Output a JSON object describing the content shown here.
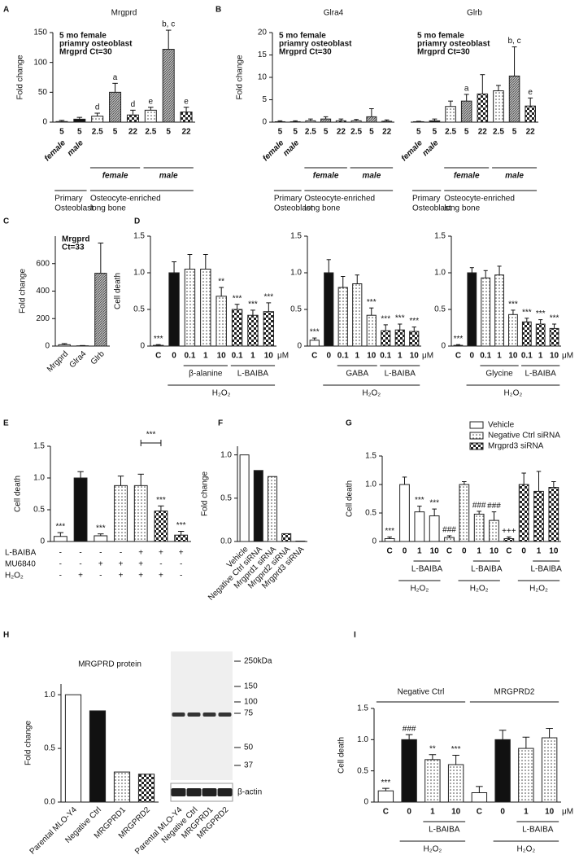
{
  "chart_data": [
    {
      "type": "bar",
      "panel": "A",
      "title": "Mrgprd",
      "note": [
        "5 mo female",
        "priamry osteoblast",
        "Mrgprd Ct=30"
      ],
      "y_label": "Fold change",
      "ylim": [
        0,
        150
      ],
      "yticks": [
        0,
        50,
        100,
        150
      ],
      "categories": [
        "5",
        "5",
        "2.5",
        "5",
        "22",
        "2.5",
        "5",
        "22"
      ],
      "values": [
        1,
        5,
        10,
        50,
        12,
        20,
        122,
        17
      ],
      "errors": [
        2,
        3,
        5,
        15,
        8,
        5,
        32,
        8
      ],
      "fills": [
        "white",
        "black",
        "dots",
        "gray",
        "checker",
        "dots",
        "gray",
        "checker"
      ],
      "annotations": [
        null,
        null,
        "d",
        "a",
        "d",
        "e",
        "b, c",
        "e"
      ],
      "sublabels": [
        "female",
        "male",
        null,
        null,
        null,
        null,
        null,
        null
      ],
      "groups": [
        {
          "label": "female",
          "from": 2,
          "to": 4
        },
        {
          "label": "male",
          "from": 5,
          "to": 7
        }
      ],
      "bottom_groups": [
        {
          "label": [
            "Primary",
            "Osteoblast"
          ],
          "from": 0,
          "to": 1
        },
        {
          "label": [
            "Osteocyte-enriched",
            "long bone"
          ],
          "from": 2,
          "to": 7
        }
      ]
    },
    {
      "type": "bar",
      "panel": "B",
      "title": "Glra4",
      "note": [
        "5 mo female",
        "priamry osteoblast",
        "Mrgprd Ct=30"
      ],
      "y_label": "Fold change",
      "ylim": [
        0,
        20
      ],
      "yticks": [
        0,
        5,
        10,
        15,
        20
      ],
      "categories": [
        "5",
        "5",
        "2.5",
        "5",
        "22",
        "2.5",
        "5",
        "22"
      ],
      "values": [
        0.1,
        0.1,
        0.3,
        0.7,
        0.3,
        0.3,
        1.2,
        0.2
      ],
      "errors": [
        0.2,
        0.2,
        0.4,
        0.5,
        0.4,
        0.3,
        1.8,
        0.3
      ],
      "fills": [
        "white",
        "black",
        "dots",
        "gray",
        "checker",
        "dots",
        "gray",
        "checker"
      ],
      "sublabels": [
        "female",
        "male",
        null,
        null,
        null,
        null,
        null,
        null
      ],
      "groups": [
        {
          "label": "female",
          "from": 2,
          "to": 4
        },
        {
          "label": "male",
          "from": 5,
          "to": 7
        }
      ],
      "bottom_groups": [
        {
          "label": [
            "Primary",
            "Osteoblast"
          ],
          "from": 0,
          "to": 1
        },
        {
          "label": [
            "Osteocyte-enriched",
            "long bone"
          ],
          "from": 2,
          "to": 7
        }
      ]
    },
    {
      "type": "bar",
      "title": "Glrb",
      "note": [
        "5 mo female",
        "priamry osteoblast",
        "Mrgprd Ct=30"
      ],
      "ylim": [
        0,
        20
      ],
      "categories": [
        "5",
        "5",
        "2.5",
        "5",
        "22",
        "2.5",
        "5",
        "22"
      ],
      "values": [
        0.1,
        0.3,
        3.5,
        4.7,
        6.3,
        7,
        10.3,
        3.6
      ],
      "errors": [
        0.1,
        0.4,
        1.2,
        1.5,
        4.3,
        1.2,
        6.5,
        1.8
      ],
      "fills": [
        "white",
        "black",
        "dots",
        "gray",
        "checker",
        "dots",
        "gray",
        "checker"
      ],
      "annotations": [
        null,
        null,
        null,
        "a",
        null,
        null,
        "b, c",
        "e"
      ],
      "sublabels": [
        "female",
        "male",
        null,
        null,
        null,
        null,
        null,
        null
      ],
      "groups": [
        {
          "label": "female",
          "from": 2,
          "to": 4
        },
        {
          "label": "male",
          "from": 5,
          "to": 7
        }
      ],
      "bottom_groups": [
        {
          "label": [
            "Primary",
            "Osteoblast"
          ],
          "from": 0,
          "to": 1
        },
        {
          "label": [
            "Osteocyte-enriched",
            "long bone"
          ],
          "from": 2,
          "to": 7
        }
      ]
    },
    {
      "type": "bar",
      "panel": "C",
      "note": [
        "Mrgprd",
        "Ct=33"
      ],
      "y_label": "Fold change",
      "ylim": [
        0,
        800
      ],
      "yticks": [
        0,
        200,
        400,
        600
      ],
      "categories": [
        "Mrgprd",
        "Glra4",
        "Glrb"
      ],
      "values": [
        10,
        2,
        530
      ],
      "errors": [
        8,
        2,
        220
      ],
      "fills": [
        "white",
        "white",
        "gray"
      ]
    },
    {
      "type": "bar",
      "panel": "D",
      "y_label": "Cell death",
      "ylim": [
        0,
        1.5
      ],
      "yticks": [
        0,
        0.5,
        {
          "value": 1,
          "label": "1.0"
        },
        1.5
      ],
      "categories": [
        "C",
        "0",
        "0.1",
        "1",
        "10",
        "0.1",
        "1",
        "10"
      ],
      "unit": "μM",
      "values": [
        0.01,
        1.0,
        1.05,
        1.05,
        0.68,
        0.5,
        0.42,
        0.47
      ],
      "errors": [
        0.01,
        0.15,
        0.2,
        0.2,
        0.12,
        0.07,
        0.07,
        0.12
      ],
      "fills": [
        "white",
        "black",
        "dots",
        "dots",
        "dots",
        "checker",
        "checker",
        "checker"
      ],
      "annotations": [
        "***",
        null,
        null,
        null,
        "**",
        "***",
        "***",
        "***"
      ],
      "groups": [
        {
          "label": "β-alanine",
          "from": 2,
          "to": 4
        },
        {
          "label": "L-BAIBA",
          "from": 5,
          "to": 7
        },
        {
          "label": "H₂O₂",
          "from": 1,
          "to": 7
        }
      ]
    },
    {
      "type": "bar",
      "ylim": [
        0,
        1.5
      ],
      "yticks": [
        0,
        0.5,
        {
          "value": 1,
          "label": "1.0"
        },
        1.5
      ],
      "categories": [
        "C",
        "0",
        "0.1",
        "1",
        "10",
        "0.1",
        "1",
        "10"
      ],
      "unit": "μM",
      "values": [
        0.08,
        1.0,
        0.8,
        0.85,
        0.42,
        0.21,
        0.22,
        0.2
      ],
      "errors": [
        0.03,
        0.18,
        0.15,
        0.12,
        0.1,
        0.08,
        0.08,
        0.06
      ],
      "fills": [
        "white",
        "black",
        "dots",
        "dots",
        "dots",
        "checker",
        "checker",
        "checker"
      ],
      "annotations": [
        "***",
        null,
        null,
        null,
        "***",
        "***",
        "***",
        "***"
      ],
      "groups": [
        {
          "label": "GABA",
          "from": 2,
          "to": 4
        },
        {
          "label": "L-BAIBA",
          "from": 5,
          "to": 7
        },
        {
          "label": "H₂O₂",
          "from": 1,
          "to": 7
        }
      ]
    },
    {
      "type": "bar",
      "ylim": [
        0,
        1.5
      ],
      "yticks": [
        0,
        0.5,
        {
          "value": 1,
          "label": "1.0"
        },
        1.5
      ],
      "categories": [
        "C",
        "0",
        "0.1",
        "1",
        "10",
        "0.1",
        "1",
        "10"
      ],
      "unit": "μM",
      "values": [
        0.01,
        1.0,
        0.93,
        0.97,
        0.43,
        0.33,
        0.3,
        0.24
      ],
      "errors": [
        0.01,
        0.07,
        0.1,
        0.12,
        0.06,
        0.05,
        0.06,
        0.06
      ],
      "fills": [
        "white",
        "black",
        "dots",
        "dots",
        "dots",
        "checker",
        "checker",
        "checker"
      ],
      "annotations": [
        "***",
        null,
        null,
        null,
        "***",
        "***",
        "***",
        "***"
      ],
      "groups": [
        {
          "label": "Glycine",
          "from": 2,
          "to": 4
        },
        {
          "label": "L-BAIBA",
          "from": 5,
          "to": 7
        },
        {
          "label": "H₂O₂",
          "from": 1,
          "to": 7
        }
      ]
    },
    {
      "type": "bar",
      "panel": "E",
      "y_label": "Cell death",
      "ylim": [
        0,
        1.5
      ],
      "yticks": [
        0,
        0.5,
        {
          "value": 1,
          "label": "1.0"
        },
        1.5
      ],
      "values": [
        0.08,
        1.0,
        0.09,
        0.88,
        0.88,
        0.48,
        0.1
      ],
      "errors": [
        0.06,
        0.1,
        0.03,
        0.15,
        0.18,
        0.08,
        0.06
      ],
      "fills": [
        "white",
        "black",
        "white",
        "dots",
        "dots",
        "checker",
        "checker"
      ],
      "annotations": [
        "***",
        null,
        "***",
        null,
        null,
        "***",
        "***"
      ],
      "brackets": [
        {
          "label": "***",
          "from": 4,
          "to": 5
        }
      ],
      "conditions": [
        {
          "label": "L-BAIBA",
          "values": [
            "-",
            "-",
            "-",
            "-",
            "+",
            "+",
            "+"
          ]
        },
        {
          "label": "MU6840",
          "values": [
            "-",
            "-",
            "+",
            "+",
            "+",
            "-",
            "-"
          ]
        },
        {
          "label": "H₂O₂",
          "values": [
            "-",
            "+",
            "-",
            "+",
            "+",
            "+",
            "-"
          ]
        }
      ]
    },
    {
      "type": "bar",
      "panel": "F",
      "y_label": "Fold change",
      "ylim": [
        0,
        1.1
      ],
      "yticks": [
        {
          "value": 0,
          "label": "0.0"
        },
        0.5,
        {
          "value": 1,
          "label": "1.0"
        }
      ],
      "categories": [
        "Vehicle",
        "Negative Ctrl siRNA",
        "Mrgprd1 siRNA",
        "Mrgprd2 siRNA",
        "Mrgprd3 siRNA"
      ],
      "values": [
        1.0,
        0.82,
        0.75,
        0.09,
        0.005
      ],
      "fills": [
        "white",
        "black",
        "dots",
        "checker",
        "gray"
      ]
    },
    {
      "type": "bar",
      "panel": "G",
      "y_label": "Cell death",
      "ylim": [
        0,
        1.5
      ],
      "yticks": [
        0,
        0.5,
        {
          "value": 1,
          "label": "1.0"
        },
        1.5
      ],
      "categories": [
        "C",
        "0",
        "1",
        "10",
        "C",
        "0",
        "1",
        "10",
        "C",
        "0",
        "1",
        "10"
      ],
      "values": [
        0.05,
        1.0,
        0.52,
        0.45,
        0.07,
        1.0,
        0.48,
        0.37,
        0.05,
        1.0,
        0.88,
        0.95
      ],
      "errors": [
        0.03,
        0.13,
        0.1,
        0.12,
        0.03,
        0.05,
        0.05,
        0.15,
        0.03,
        0.2,
        0.35,
        0.1
      ],
      "fills": [
        "white",
        "white",
        "white",
        "white",
        "dots",
        "dots",
        "dots",
        "dots",
        "checker",
        "checker",
        "checker",
        "checker"
      ],
      "annotations": [
        "***",
        null,
        "***",
        "***",
        "###",
        null,
        "###",
        "###",
        "+++",
        null,
        null,
        null
      ],
      "legend": [
        {
          "name": "Vehicle",
          "fill": "white"
        },
        {
          "name": "Negative Ctrl siRNA",
          "fill": "dots"
        },
        {
          "name": "Mrgprd3 siRNA",
          "fill": "checker"
        }
      ],
      "groups": [
        {
          "label": "L-BAIBA",
          "from": 2,
          "to": 3
        },
        {
          "label": "H₂O₂",
          "from": 1,
          "to": 3
        },
        {
          "label": "L-BAIBA",
          "from": 6,
          "to": 7
        },
        {
          "label": "H₂O₂",
          "from": 5,
          "to": 7
        },
        {
          "label": "L-BAIBA",
          "from": 10,
          "to": 11
        },
        {
          "label": "H₂O₂",
          "from": 9,
          "to": 11
        }
      ]
    },
    {
      "type": "bar",
      "panel": "H",
      "title": "MRGPRD protein",
      "y_label": "Fold change",
      "ylim": [
        0,
        1.1
      ],
      "yticks": [
        {
          "value": 0,
          "label": "0.0"
        },
        0.5,
        {
          "value": 1,
          "label": "1.0"
        }
      ],
      "categories": [
        "Parental MLO-Y4",
        "Negative Ctrl",
        "MRGPRD1",
        "MRGPRD2"
      ],
      "values": [
        1.0,
        0.85,
        0.28,
        0.26
      ],
      "fills": [
        "white",
        "black",
        "dots",
        "checker"
      ],
      "blot": {
        "markers": [
          "250kDa",
          "150",
          "100",
          "75",
          "50",
          "37"
        ],
        "loading_control": "β-actin",
        "lanes": [
          "Parental MLO-Y4",
          "Negative Ctrl",
          "MRGPRD1",
          "MRGPRD2"
        ]
      }
    },
    {
      "type": "bar",
      "panel": "I",
      "y_label": "Cell death",
      "ylim": [
        0,
        1.5
      ],
      "yticks": [
        0,
        0.5,
        {
          "value": 1,
          "label": "1.0"
        },
        1.5
      ],
      "categories": [
        "C",
        "0",
        "1",
        "10",
        "C",
        "0",
        "1",
        "10"
      ],
      "unit": "μM",
      "values": [
        0.18,
        1.0,
        0.68,
        0.6,
        0.15,
        1.0,
        0.86,
        1.03
      ],
      "errors": [
        0.04,
        0.08,
        0.08,
        0.15,
        0.1,
        0.15,
        0.18,
        0.15
      ],
      "fills": [
        "white",
        "black",
        "dots",
        "dots",
        "white",
        "black",
        "dots",
        "dots"
      ],
      "annotations": [
        "***",
        "###",
        "**",
        "***",
        null,
        null,
        null,
        null
      ],
      "top_groups": [
        {
          "label": "Negative Ctrl",
          "from": 0,
          "to": 3
        },
        {
          "label": "MRGPRD2",
          "from": 4,
          "to": 7
        }
      ],
      "groups": [
        {
          "label": "L-BAIBA",
          "from": 2,
          "to": 3
        },
        {
          "label": "H₂O₂",
          "from": 1,
          "to": 3
        },
        {
          "label": "L-BAIBA",
          "from": 6,
          "to": 7
        },
        {
          "label": "H₂O₂",
          "from": 5,
          "to": 7
        }
      ]
    }
  ]
}
